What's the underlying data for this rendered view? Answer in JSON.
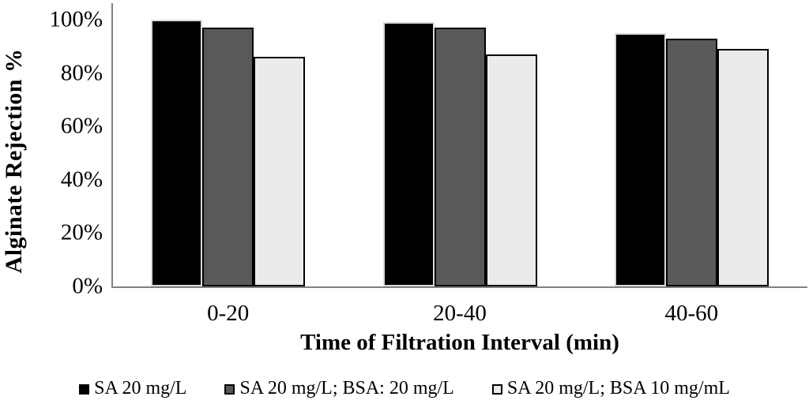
{
  "chart_data": {
    "type": "bar",
    "title": "",
    "categories": [
      "0-20",
      "20-40",
      "40-60"
    ],
    "series": [
      {
        "name": "SA 20 mg/L",
        "values": [
          100,
          99,
          95
        ],
        "fill": "#000000",
        "border": "#d9d9d9"
      },
      {
        "name": "SA 20 mg/L; BSA: 20 mg/L",
        "values": [
          97,
          97,
          93
        ],
        "fill": "#595959",
        "border": "#000000"
      },
      {
        "name": "SA 20 mg/L; BSA 10 mg/mL",
        "values": [
          86,
          87,
          89
        ],
        "fill": "#ebebeb",
        "border": "#000000"
      }
    ],
    "xlabel": "Time of Filtration Interval (min)",
    "ylabel": "Alginate Rejection %",
    "y_axis": {
      "tick_labels": [
        "0%",
        "20%",
        "40%",
        "60%",
        "80%",
        "100%"
      ],
      "tick_values": [
        0,
        20,
        40,
        60,
        80,
        100
      ],
      "ylim": [
        0,
        100
      ]
    },
    "grid": false,
    "legend_position": "bottom",
    "colors": {
      "axis": "#808080",
      "text": "#000000",
      "background": "#ffffff"
    }
  }
}
